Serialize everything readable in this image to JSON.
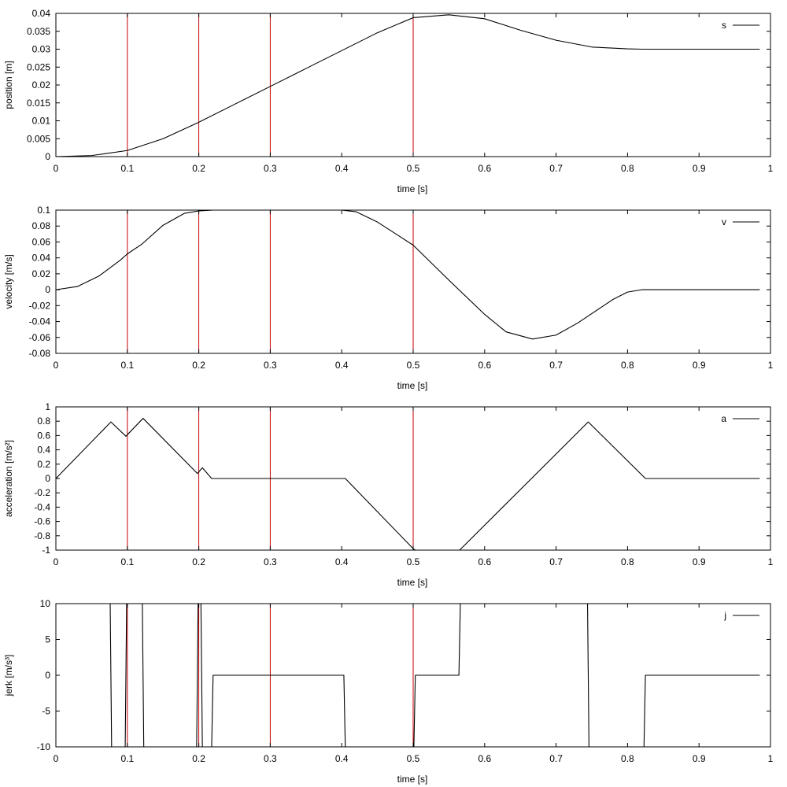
{
  "chart_data": [
    {
      "type": "line",
      "xlabel": "time [s]",
      "ylabel": "position [m]",
      "xlim": [
        0,
        1
      ],
      "ylim": [
        0,
        0.04
      ],
      "xticks": [
        "0",
        "0.1",
        "0.2",
        "0.3",
        "0.4",
        "0.5",
        "0.6",
        "0.7",
        "0.8",
        "0.9",
        "1"
      ],
      "yticks": [
        "0",
        "0.005",
        "0.01",
        "0.015",
        "0.02",
        "0.025",
        "0.03",
        "0.035",
        "0.04"
      ],
      "grid": false,
      "legend_position": "top-right",
      "vlines": [
        0.1,
        0.2,
        0.3,
        0.5
      ],
      "series": [
        {
          "name": "s",
          "color": "#000000",
          "x": [
            0,
            0.05,
            0.1,
            0.15,
            0.2,
            0.25,
            0.3,
            0.35,
            0.4,
            0.45,
            0.5,
            0.55,
            0.6,
            0.65,
            0.7,
            0.75,
            0.8,
            0.82,
            0.9,
            0.985
          ],
          "y": [
            0,
            0.0003,
            0.0017,
            0.005,
            0.0096,
            0.0146,
            0.0196,
            0.0246,
            0.0296,
            0.0346,
            0.0388,
            0.0396,
            0.0385,
            0.0353,
            0.0325,
            0.0306,
            0.0301,
            0.03,
            0.03,
            0.03
          ]
        }
      ]
    },
    {
      "type": "line",
      "xlabel": "time [s]",
      "ylabel": "velocity [m/s]",
      "xlim": [
        0,
        1
      ],
      "ylim": [
        -0.08,
        0.1
      ],
      "xticks": [
        "0",
        "0.1",
        "0.2",
        "0.3",
        "0.4",
        "0.5",
        "0.6",
        "0.7",
        "0.8",
        "0.9",
        "1"
      ],
      "yticks": [
        "-0.08",
        "-0.06",
        "-0.04",
        "-0.02",
        "0",
        "0.02",
        "0.04",
        "0.06",
        "0.08",
        "0.1"
      ],
      "grid": false,
      "legend_position": "top-right",
      "vlines": [
        0.1,
        0.2,
        0.3,
        0.5
      ],
      "series": [
        {
          "name": "v",
          "color": "#000000",
          "x": [
            0,
            0.03,
            0.06,
            0.09,
            0.1,
            0.12,
            0.15,
            0.18,
            0.2,
            0.22,
            0.3,
            0.4,
            0.42,
            0.45,
            0.5,
            0.55,
            0.6,
            0.63,
            0.667,
            0.7,
            0.73,
            0.75,
            0.78,
            0.8,
            0.82,
            0.9,
            0.985
          ],
          "y": [
            0,
            0.004,
            0.017,
            0.037,
            0.045,
            0.057,
            0.081,
            0.096,
            0.099,
            0.1,
            0.1,
            0.1,
            0.098,
            0.085,
            0.056,
            0.012,
            -0.031,
            -0.053,
            -0.062,
            -0.057,
            -0.042,
            -0.03,
            -0.012,
            -0.003,
            0,
            0,
            0
          ]
        }
      ]
    },
    {
      "type": "line",
      "xlabel": "time [s]",
      "ylabel": "acceleration [m/s²]",
      "xlim": [
        0,
        1
      ],
      "ylim": [
        -1,
        1
      ],
      "xticks": [
        "0",
        "0.1",
        "0.2",
        "0.3",
        "0.4",
        "0.5",
        "0.6",
        "0.7",
        "0.8",
        "0.9",
        "1"
      ],
      "yticks": [
        "-1",
        "-0.8",
        "-0.6",
        "-0.4",
        "-0.2",
        "0",
        "0.2",
        "0.4",
        "0.6",
        "0.8",
        "1"
      ],
      "grid": false,
      "legend_position": "top-right",
      "vlines": [
        0.1,
        0.2,
        0.3,
        0.5
      ],
      "series": [
        {
          "name": "a",
          "color": "#000000",
          "x": [
            0,
            0.077,
            0.098,
            0.122,
            0.198,
            0.205,
            0.218,
            0.4,
            0.405,
            0.5,
            0.503,
            0.565,
            0.745,
            0.825,
            0.985
          ],
          "y": [
            0,
            0.79,
            0.59,
            0.84,
            0.07,
            0.15,
            0,
            0,
            0,
            -0.98,
            -1,
            -1,
            0.79,
            0,
            0
          ]
        }
      ]
    },
    {
      "type": "line",
      "xlabel": "time [s]",
      "ylabel": "jerk [m/s³]",
      "xlim": [
        0,
        1
      ],
      "ylim": [
        -10,
        10
      ],
      "xticks": [
        "0",
        "0.1",
        "0.2",
        "0.3",
        "0.4",
        "0.5",
        "0.6",
        "0.7",
        "0.8",
        "0.9",
        "1"
      ],
      "yticks": [
        "-10",
        "-5",
        "0",
        "5",
        "10"
      ],
      "grid": false,
      "legend_position": "top-right",
      "vlines": [
        0.1,
        0.2,
        0.3,
        0.5
      ],
      "series": [
        {
          "name": "j",
          "color": "#000000",
          "x": [
            0,
            0.076,
            0.078,
            0.097,
            0.099,
            0.121,
            0.123,
            0.197,
            0.199,
            0.203,
            0.205,
            0.218,
            0.22,
            0.403,
            0.405,
            0.501,
            0.503,
            0.564,
            0.566,
            0.744,
            0.746,
            0.823,
            0.825,
            0.985
          ],
          "y": [
            10,
            10,
            -10,
            -10,
            10,
            10,
            -10,
            -10,
            10,
            10,
            -10,
            -10,
            0,
            0,
            -10,
            -10,
            0,
            0,
            10,
            10,
            -10,
            -10,
            0,
            0
          ]
        }
      ]
    }
  ]
}
